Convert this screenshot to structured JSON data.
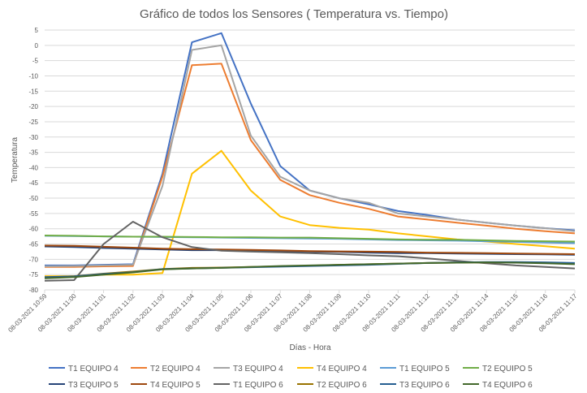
{
  "chart_data": {
    "type": "line",
    "title": "Gráfico de todos los Sensores ( Temperatura vs. Tiempo)",
    "xlabel": "Días - Hora",
    "ylabel": "Temperatura",
    "ylim": [
      -80,
      5
    ],
    "yticks": [
      5,
      0,
      -5,
      -10,
      -15,
      -20,
      -25,
      -30,
      -35,
      -40,
      -45,
      -50,
      -55,
      -60,
      -65,
      -70,
      -75,
      -80
    ],
    "grid": true,
    "legend_position": "bottom",
    "categories": [
      "08-03-2021 10:59",
      "08-03-2021 11:00",
      "08-03-2021 11:01",
      "08-03-2021 11:02",
      "08-03-2021 11:03",
      "08-03-2021 11:04",
      "08-03-2021 11:05",
      "08-03-2021 11:06",
      "08-03-2021 11:07",
      "08-03-2021 11:08",
      "08-03-2021 11:09",
      "08-03-2021 11:10",
      "08-03-2021 11:11",
      "08-03-2021 11:12",
      "08-03-2021 11:13",
      "08-03-2021 11:14",
      "08-03-2021 11:15",
      "08-03-2021 11:16",
      "08-03-2021 11:17"
    ],
    "series": [
      {
        "name": "T1 EQUIPO 4",
        "color": "#4472C4",
        "values": [
          -72,
          -72,
          -71.8,
          -71.6,
          -42,
          1,
          4,
          -19,
          -39.5,
          -47.5,
          -50,
          -52,
          -54.2,
          -55.5,
          -57,
          -58,
          -59,
          -59.8,
          -60.5
        ]
      },
      {
        "name": "T2 EQUIPO 4",
        "color": "#ED7D31",
        "values": [
          -72.5,
          -72.5,
          -72.3,
          -72.2,
          -43,
          -6.5,
          -6,
          -31,
          -44,
          -49,
          -51.5,
          -53.5,
          -56,
          -57,
          -58,
          -59,
          -60,
          -60.8,
          -61.5
        ]
      },
      {
        "name": "T3 EQUIPO 4",
        "color": "#A5A5A5",
        "values": [
          -72.3,
          -72.2,
          -72,
          -71.8,
          -46,
          -1.5,
          0,
          -29.5,
          -43,
          -47.5,
          -50,
          -51.5,
          -55,
          -56,
          -57,
          -58,
          -59,
          -59.8,
          -60.8
        ]
      },
      {
        "name": "T4 EQUIPO 4",
        "color": "#FFC000",
        "values": [
          -75.5,
          -75.5,
          -75,
          -75,
          -74.5,
          -42,
          -34.5,
          -47.5,
          -56,
          -58.8,
          -59.7,
          -60.3,
          -61.5,
          -62.5,
          -63.5,
          -64.2,
          -65,
          -65.7,
          -66.5
        ]
      },
      {
        "name": "T1 EQUIPO 5",
        "color": "#5B9BD5",
        "values": [
          -62.3,
          -62.4,
          -62.5,
          -62.6,
          -62.7,
          -62.8,
          -62.9,
          -63,
          -63.1,
          -63.2,
          -63.3,
          -63.5,
          -63.7,
          -63.8,
          -63.9,
          -64.1,
          -64.3,
          -64.5,
          -64.7
        ]
      },
      {
        "name": "T2 EQUIPO 5",
        "color": "#70AD47",
        "values": [
          -62.2,
          -62.3,
          -62.5,
          -62.6,
          -62.6,
          -62.7,
          -62.8,
          -62.8,
          -62.9,
          -62.9,
          -63.1,
          -63.3,
          -63.5,
          -63.6,
          -63.6,
          -63.8,
          -64,
          -64.1,
          -64.2
        ]
      },
      {
        "name": "T3 EQUIPO 5",
        "color": "#264478",
        "values": [
          -65.8,
          -66,
          -66.3,
          -66.5,
          -66.8,
          -67,
          -67,
          -67.2,
          -67.3,
          -67.5,
          -67.6,
          -67.8,
          -68,
          -68,
          -68.1,
          -68.2,
          -68.3,
          -68.4,
          -68.5
        ]
      },
      {
        "name": "T4 EQUIPO 5",
        "color": "#9E480E",
        "values": [
          -65.5,
          -65.6,
          -65.9,
          -66.2,
          -66.5,
          -66.7,
          -66.8,
          -66.9,
          -67.1,
          -67.3,
          -67.4,
          -67.5,
          -67.6,
          -67.8,
          -67.9,
          -68,
          -68.1,
          -68.2,
          -68.3
        ]
      },
      {
        "name": "T1 EQUIPO 6",
        "color": "#636363",
        "values": [
          -77,
          -76.8,
          -65,
          -57.7,
          -62.8,
          -66,
          -67.2,
          -67.5,
          -67.7,
          -68,
          -68.3,
          -68.7,
          -69,
          -69.7,
          -70.5,
          -71.3,
          -72,
          -72.5,
          -73
        ]
      },
      {
        "name": "T2 EQUIPO 6",
        "color": "#997300",
        "values": [
          -76,
          -75.5,
          -74.7,
          -74,
          -73.2,
          -72.8,
          -72.7,
          -72.5,
          -72.3,
          -72.1,
          -71.8,
          -71.6,
          -71.4,
          -71.2,
          -71.1,
          -71,
          -71,
          -71.1,
          -71.3
        ]
      },
      {
        "name": "T3 EQUIPO 6",
        "color": "#255E91",
        "values": [
          -75.8,
          -75.6,
          -74.8,
          -74.2,
          -73.2,
          -73,
          -72.8,
          -72.6,
          -72.4,
          -72.2,
          -72,
          -71.8,
          -71.5,
          -71.2,
          -71,
          -70.9,
          -70.9,
          -71,
          -71.2
        ]
      },
      {
        "name": "T4 EQUIPO 6",
        "color": "#43682B",
        "values": [
          -76.2,
          -75.8,
          -75,
          -74.3,
          -73.3,
          -73,
          -72.8,
          -72.5,
          -72.2,
          -72,
          -71.8,
          -71.6,
          -71.4,
          -71.2,
          -71.1,
          -71,
          -71.1,
          -71.3,
          -71.6
        ]
      }
    ]
  }
}
